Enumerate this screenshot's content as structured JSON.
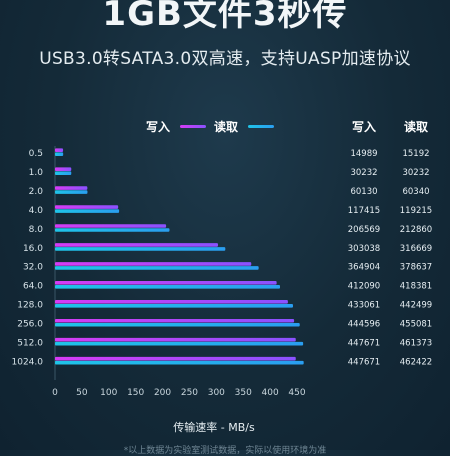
{
  "header": {
    "title": "1GB文件3秒传",
    "subtitle": "USB3.0转SATA3.0双高速，支持UASP加速协议"
  },
  "legend": {
    "write_label": "写入",
    "read_label": "读取"
  },
  "table": {
    "write_header": "写入",
    "read_header": "读取"
  },
  "colors": {
    "write": "#d63cf5",
    "write_end": "#8a52ff",
    "read": "#1fc4e8",
    "read_end": "#2a9ef0"
  },
  "chart_data": {
    "type": "bar",
    "orientation": "horizontal",
    "categories": [
      "0.5",
      "1.0",
      "2.0",
      "4.0",
      "8.0",
      "16.0",
      "32.0",
      "64.0",
      "128.0",
      "256.0",
      "512.0",
      "1024.0"
    ],
    "series": [
      {
        "name": "写入",
        "values": [
          14.989,
          30.232,
          60.13,
          117.415,
          206.569,
          303.038,
          364.904,
          412.09,
          433.061,
          444.596,
          447.671,
          447.671
        ]
      },
      {
        "name": "读取",
        "values": [
          15.192,
          30.232,
          60.34,
          119.215,
          212.86,
          316.669,
          378.637,
          418.381,
          442.499,
          455.081,
          461.373,
          462.422
        ]
      }
    ],
    "table_values": {
      "write": [
        "14989",
        "30232",
        "60130",
        "117415",
        "206569",
        "303038",
        "364904",
        "412090",
        "433061",
        "444596",
        "447671",
        "447671"
      ],
      "read": [
        "15192",
        "30232",
        "60340",
        "119215",
        "212860",
        "316669",
        "378637",
        "418381",
        "442499",
        "455081",
        "461373",
        "462422"
      ]
    },
    "xticks": [
      "0",
      "50",
      "100",
      "150",
      "200",
      "250",
      "300",
      "350",
      "400",
      "450"
    ],
    "xlabel": "传输速率 - MB/s",
    "xlim": [
      0,
      470
    ]
  },
  "footer": {
    "note": "*以上数据为实验室测试数据，实际以使用环境为准"
  }
}
